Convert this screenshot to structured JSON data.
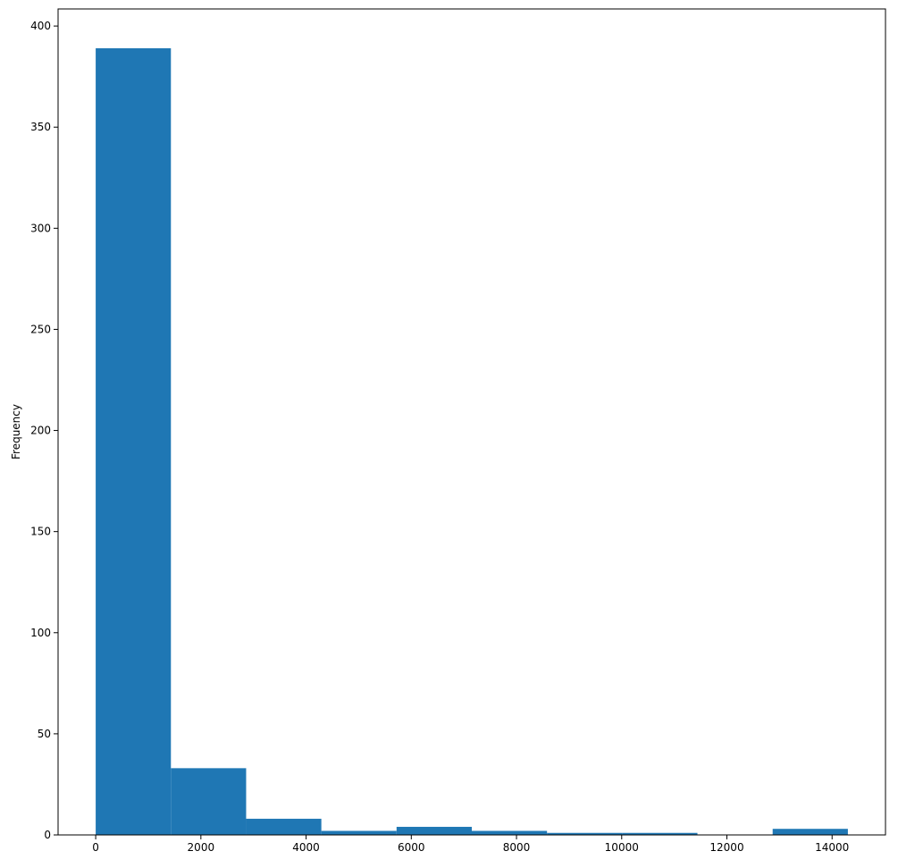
{
  "chart_data": {
    "type": "bar",
    "subtype": "histogram",
    "title": "",
    "xlabel": "",
    "ylabel": "Frequency",
    "xlim": [
      -715,
      15015
    ],
    "ylim": [
      0,
      408.45
    ],
    "xticks": [
      0,
      2000,
      4000,
      6000,
      8000,
      10000,
      12000,
      14000
    ],
    "yticks": [
      0,
      50,
      100,
      150,
      200,
      250,
      300,
      350,
      400
    ],
    "bins": [
      {
        "start": 0,
        "end": 1430,
        "count": 389
      },
      {
        "start": 1430,
        "end": 2860,
        "count": 33
      },
      {
        "start": 2860,
        "end": 4290,
        "count": 8
      },
      {
        "start": 4290,
        "end": 5720,
        "count": 2
      },
      {
        "start": 5720,
        "end": 7150,
        "count": 4
      },
      {
        "start": 7150,
        "end": 8580,
        "count": 2
      },
      {
        "start": 8580,
        "end": 10010,
        "count": 1
      },
      {
        "start": 10010,
        "end": 11440,
        "count": 1
      },
      {
        "start": 11440,
        "end": 12870,
        "count": 0
      },
      {
        "start": 12870,
        "end": 14300,
        "count": 3
      }
    ],
    "grid": false,
    "legend": "none",
    "colors": {
      "bar": "#1f77b4",
      "axis": "#000000",
      "background": "#ffffff"
    }
  }
}
